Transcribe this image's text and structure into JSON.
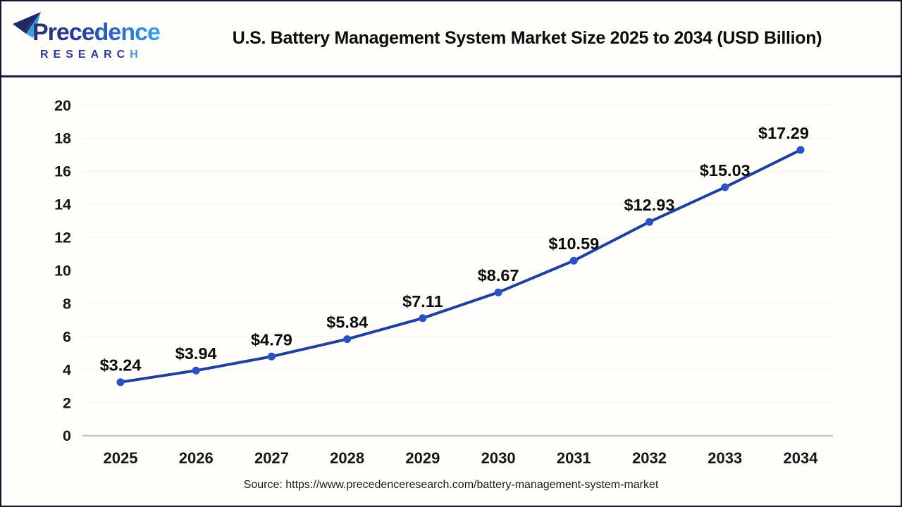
{
  "header": {
    "logo": {
      "brand": "Precedence",
      "research_main": "RESEARC",
      "research_accent": "H"
    },
    "title": "U.S. Battery Management System Market Size 2025 to 2034 (USD Billion)"
  },
  "chart_data": {
    "type": "line",
    "title": "U.S. Battery Management System Market Size 2025 to 2034 (USD Billion)",
    "x": [
      2025,
      2026,
      2027,
      2028,
      2029,
      2030,
      2031,
      2032,
      2033,
      2034
    ],
    "values": [
      3.24,
      3.94,
      4.79,
      5.84,
      7.11,
      8.67,
      10.59,
      12.93,
      15.03,
      17.29
    ],
    "labels": [
      "$3.24",
      "$3.94",
      "$4.79",
      "$5.84",
      "$7.11",
      "$8.67",
      "$10.59",
      "$12.93",
      "$15.03",
      "$17.29"
    ],
    "xlabel": "",
    "ylabel": "",
    "ylim": [
      0,
      20
    ],
    "yticks": [
      0,
      2,
      4,
      6,
      8,
      10,
      12,
      14,
      16,
      18,
      20
    ],
    "grid": true,
    "legend": "none",
    "label_dx": [
      0,
      0,
      0,
      0,
      0,
      0,
      0,
      0,
      0,
      -24
    ],
    "line_color": "#20409f",
    "point_color": "#2a52c4",
    "label_color": "#0c0c0c",
    "tick_color": "#161616",
    "grid_color": "#f2f2f2",
    "axis_color": "#bfbfbf"
  },
  "footer": {
    "source": "Source: https://www.precedenceresearch.com/battery-management-system-market"
  }
}
